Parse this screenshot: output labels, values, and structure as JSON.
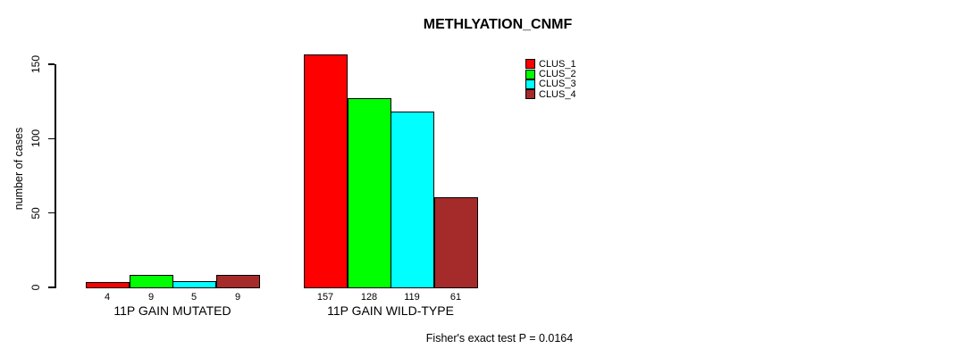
{
  "chart_data": {
    "type": "bar",
    "title": "METHLYATION_CNMF",
    "ylabel": "number of cases",
    "xlabel": "",
    "categories": [
      "11P GAIN MUTATED",
      "11P GAIN WILD-TYPE"
    ],
    "series": [
      {
        "name": "CLUS_1",
        "color": "#FF0000",
        "values": [
          4,
          157
        ]
      },
      {
        "name": "CLUS_2",
        "color": "#00FF00",
        "values": [
          9,
          128
        ]
      },
      {
        "name": "CLUS_3",
        "color": "#00FFFF",
        "values": [
          5,
          119
        ]
      },
      {
        "name": "CLUS_4",
        "color": "#A52A2A",
        "values": [
          9,
          61
        ]
      }
    ],
    "yticks": [
      0,
      50,
      100,
      150
    ],
    "ylim": [
      0,
      157
    ],
    "grid": false,
    "bar_value_labels_shown": true,
    "legend_position": "top-right",
    "annotation": "Fisher's exact test P = 0.0164"
  }
}
